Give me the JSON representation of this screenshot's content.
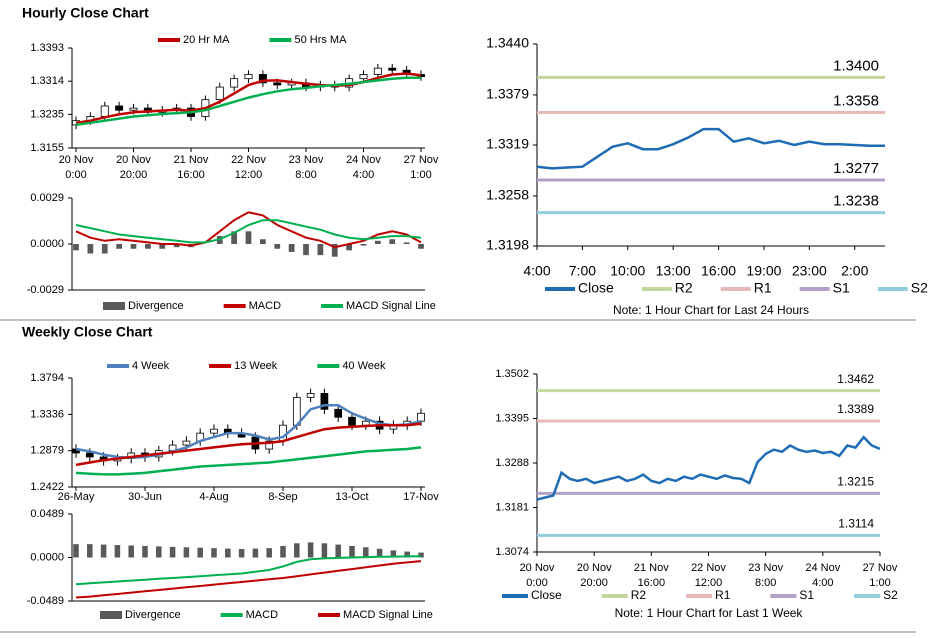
{
  "sections": [
    "Hourly Close Chart",
    "Weekly Close Chart"
  ],
  "chart_data": [
    {
      "type": "candlestick",
      "legend": "top",
      "categories": [
        "20 Nov\n0:00",
        null,
        null,
        null,
        "20 Nov\n20:00",
        null,
        null,
        null,
        "21 Nov\n16:00",
        null,
        null,
        null,
        "22 Nov\n12:00",
        null,
        null,
        null,
        "23 Nov\n8:00",
        null,
        null,
        null,
        "24 Nov\n4:00",
        null,
        null,
        null,
        "27 Nov\n1:00"
      ],
      "candles": {
        "color": "#000000",
        "open": [
          1.321,
          1.322,
          1.323,
          1.3255,
          1.3245,
          1.325,
          1.324,
          1.3245,
          1.325,
          1.323,
          1.327,
          1.33,
          1.332,
          1.333,
          1.331,
          1.3305,
          1.331,
          1.33,
          1.3305,
          1.33,
          1.332,
          1.333,
          1.3345,
          1.334,
          1.333
        ],
        "high": [
          1.323,
          1.324,
          1.3265,
          1.3265,
          1.326,
          1.326,
          1.3255,
          1.326,
          1.326,
          1.328,
          1.331,
          1.333,
          1.334,
          1.334,
          1.332,
          1.332,
          1.332,
          1.3315,
          1.3315,
          1.333,
          1.334,
          1.3355,
          1.3355,
          1.335,
          1.334
        ],
        "low": [
          1.32,
          1.321,
          1.322,
          1.3235,
          1.3235,
          1.323,
          1.323,
          1.3235,
          1.322,
          1.322,
          1.326,
          1.329,
          1.331,
          1.33,
          1.3295,
          1.3295,
          1.329,
          1.329,
          1.329,
          1.329,
          1.331,
          1.332,
          1.333,
          1.332,
          1.3315
        ],
        "close": [
          1.322,
          1.323,
          1.3255,
          1.3245,
          1.325,
          1.324,
          1.3245,
          1.325,
          1.323,
          1.327,
          1.33,
          1.332,
          1.333,
          1.331,
          1.3305,
          1.331,
          1.33,
          1.3305,
          1.33,
          1.332,
          1.333,
          1.3345,
          1.334,
          1.333,
          1.3325
        ]
      },
      "series": [
        {
          "name": "20 Hr MA",
          "color": "#c00000",
          "values": [
            1.3215,
            1.322,
            1.3228,
            1.3235,
            1.324,
            1.3242,
            1.3244,
            1.3246,
            1.3244,
            1.325,
            1.3265,
            1.3285,
            1.3305,
            1.3315,
            1.3316,
            1.3312,
            1.3308,
            1.3305,
            1.3303,
            1.3305,
            1.3312,
            1.3322,
            1.333,
            1.3332,
            1.3328
          ]
        },
        {
          "name": "50 Hrs MA",
          "color": "#00b050",
          "values": [
            1.321,
            1.3215,
            1.322,
            1.3225,
            1.323,
            1.3233,
            1.3236,
            1.3238,
            1.324,
            1.3245,
            1.3255,
            1.3265,
            1.3275,
            1.3283,
            1.329,
            1.3295,
            1.3298,
            1.3302,
            1.3305,
            1.3308,
            1.3312,
            1.3316,
            1.332,
            1.3322,
            1.3322
          ]
        }
      ],
      "ylim": [
        1.3155,
        1.3393
      ],
      "yticks": [
        1.3393,
        1.3314,
        1.3235,
        1.3155
      ]
    },
    {
      "type": "macd",
      "legend": "bottom",
      "series": [
        {
          "name": "Divergence",
          "color": "#595959",
          "style": "bar",
          "values": [
            -0.0004,
            -0.0006,
            -0.0006,
            -0.0003,
            -0.0003,
            -0.0003,
            -0.0003,
            -0.0002,
            -0.0002,
            0.0,
            0.0005,
            0.0008,
            0.0008,
            0.0003,
            -0.0003,
            -0.0005,
            -0.0007,
            -0.0007,
            -0.0008,
            -0.0004,
            -0.0001,
            0.0002,
            0.0003,
            0.0001,
            -0.0003
          ]
        },
        {
          "name": "MACD",
          "color": "#c00000",
          "style": "line",
          "values": [
            0.0008,
            0.0004,
            0.0002,
            0.0003,
            0.0002,
            0.0001,
            0.0,
            0.0,
            -0.0001,
            0.0001,
            0.0008,
            0.0015,
            0.002,
            0.0018,
            0.0012,
            0.0008,
            0.0004,
            0.0002,
            -0.0002,
            0.0,
            0.0002,
            0.0006,
            0.0008,
            0.0006,
            0.0001
          ]
        },
        {
          "name": "MACD Signal Line",
          "color": "#00b050",
          "style": "line",
          "values": [
            0.0012,
            0.001,
            0.0008,
            0.0006,
            0.0005,
            0.0004,
            0.0003,
            0.0002,
            0.0001,
            0.0001,
            0.0003,
            0.0007,
            0.0012,
            0.0015,
            0.0015,
            0.0013,
            0.0011,
            0.0009,
            0.0006,
            0.0004,
            0.0003,
            0.0004,
            0.0005,
            0.0005,
            0.0004
          ]
        }
      ],
      "ylim": [
        -0.0029,
        0.0029
      ],
      "yticks": [
        0.0029,
        {
          "value": 0,
          "label": "0.0000"
        },
        -0.0029
      ]
    },
    {
      "type": "line",
      "legend": "bottom",
      "note": "Note: 1 Hour Chart for Last 24 Hours",
      "categories": [
        "4:00",
        null,
        null,
        "7:00",
        null,
        null,
        "10:00",
        null,
        null,
        "13:00",
        null,
        null,
        "16:00",
        null,
        null,
        "19:00",
        null,
        null,
        "23:00",
        null,
        null,
        "2:00",
        null,
        null
      ],
      "series": [
        {
          "name": "Close",
          "color": "#1f6cb4",
          "values": [
            1.3293,
            1.3291,
            1.3292,
            1.3293,
            1.3305,
            1.3317,
            1.3321,
            1.3314,
            1.3314,
            1.332,
            1.3328,
            1.3338,
            1.3338,
            1.3323,
            1.3327,
            1.3321,
            1.3324,
            1.3319,
            1.3323,
            1.332,
            1.332,
            1.3319,
            1.3318,
            1.3318
          ]
        }
      ],
      "levels": {
        "names": [
          "R2",
          "R1",
          "S1",
          "S2"
        ],
        "colors": [
          "#c3d69b",
          "#e6b9b8",
          "#b3a2c7",
          "#92cddc"
        ],
        "values": [
          1.34,
          1.3358,
          1.3277,
          1.3238
        ],
        "value_labels": [
          "1.3400",
          "1.3358",
          "1.3277",
          "1.3238"
        ]
      },
      "ylim": [
        1.3198,
        1.344
      ],
      "yticks": [
        {
          "value": 1.344,
          "label": "1.3440"
        },
        1.3379,
        1.3319,
        1.3258,
        1.3198
      ]
    },
    {
      "type": "candlestick",
      "legend": "top",
      "categories": [
        "26-May",
        null,
        null,
        null,
        null,
        "30-Jun",
        null,
        null,
        null,
        null,
        "4-Aug",
        null,
        null,
        null,
        null,
        "8-Sep",
        null,
        null,
        null,
        null,
        "13-Oct",
        null,
        null,
        null,
        null,
        "17-Nov"
      ],
      "candles": {
        "color": "#000000",
        "open": [
          1.29,
          1.285,
          1.28,
          1.275,
          1.278,
          1.285,
          1.28,
          1.288,
          1.295,
          1.3,
          1.31,
          1.315,
          1.31,
          1.305,
          1.29,
          1.3,
          1.32,
          1.355,
          1.36,
          1.34,
          1.33,
          1.32,
          1.325,
          1.315,
          1.32,
          1.325
        ],
        "high": [
          1.296,
          1.291,
          1.286,
          1.284,
          1.291,
          1.291,
          1.294,
          1.301,
          1.306,
          1.316,
          1.321,
          1.321,
          1.316,
          1.311,
          1.306,
          1.326,
          1.361,
          1.366,
          1.366,
          1.346,
          1.336,
          1.331,
          1.331,
          1.326,
          1.331,
          1.341
        ],
        "low": [
          1.279,
          1.274,
          1.269,
          1.269,
          1.272,
          1.274,
          1.274,
          1.282,
          1.289,
          1.294,
          1.304,
          1.304,
          1.304,
          1.284,
          1.284,
          1.294,
          1.314,
          1.349,
          1.334,
          1.324,
          1.314,
          1.314,
          1.309,
          1.309,
          1.314,
          1.319
        ],
        "close": [
          1.285,
          1.28,
          1.275,
          1.278,
          1.285,
          1.28,
          1.288,
          1.295,
          1.3,
          1.31,
          1.315,
          1.31,
          1.305,
          1.29,
          1.3,
          1.32,
          1.355,
          1.36,
          1.34,
          1.33,
          1.32,
          1.325,
          1.315,
          1.32,
          1.325,
          1.335
        ]
      },
      "series": [
        {
          "name": "4 Week",
          "color": "#4f81bd",
          "values": [
            1.29,
            1.287,
            1.283,
            1.28,
            1.279,
            1.28,
            1.283,
            1.287,
            1.292,
            1.3,
            1.305,
            1.31,
            1.31,
            1.307,
            1.302,
            1.305,
            1.32,
            1.34,
            1.345,
            1.345,
            1.335,
            1.328,
            1.322,
            1.32,
            1.321,
            1.325
          ]
        },
        {
          "name": "13 Week",
          "color": "#c00000",
          "values": [
            1.27,
            1.273,
            1.276,
            1.278,
            1.28,
            1.282,
            1.284,
            1.286,
            1.288,
            1.29,
            1.292,
            1.294,
            1.296,
            1.297,
            1.298,
            1.3,
            1.305,
            1.31,
            1.315,
            1.317,
            1.318,
            1.319,
            1.32,
            1.32,
            1.32,
            1.322
          ]
        },
        {
          "name": "40 Week",
          "color": "#00b050",
          "values": [
            1.26,
            1.259,
            1.258,
            1.258,
            1.259,
            1.26,
            1.262,
            1.264,
            1.266,
            1.268,
            1.269,
            1.27,
            1.271,
            1.272,
            1.273,
            1.275,
            1.277,
            1.279,
            1.281,
            1.283,
            1.285,
            1.287,
            1.288,
            1.289,
            1.29,
            1.292
          ]
        }
      ],
      "ylim": [
        1.2422,
        1.3794
      ],
      "yticks": [
        1.3794,
        1.3336,
        1.2879,
        1.2422
      ]
    },
    {
      "type": "macd",
      "legend": "bottom",
      "series": [
        {
          "name": "Divergence",
          "color": "#595959",
          "style": "bar",
          "values": [
            0.015,
            0.015,
            0.0145,
            0.014,
            0.0135,
            0.013,
            0.0125,
            0.012,
            0.0115,
            0.011,
            0.0105,
            0.01,
            0.0095,
            0.01,
            0.0105,
            0.013,
            0.016,
            0.017,
            0.016,
            0.0145,
            0.013,
            0.0115,
            0.0098,
            0.008,
            0.0067,
            0.0055
          ]
        },
        {
          "name": "MACD",
          "color": "#00b050",
          "style": "line",
          "values": [
            -0.03,
            -0.029,
            -0.028,
            -0.027,
            -0.026,
            -0.025,
            -0.024,
            -0.023,
            -0.022,
            -0.021,
            -0.02,
            -0.019,
            -0.018,
            -0.016,
            -0.014,
            -0.01,
            -0.005,
            -0.002,
            -0.001,
            -0.0005,
            0.0,
            0.0005,
            0.0008,
            0.001,
            0.0012,
            0.0015
          ]
        },
        {
          "name": "MACD Signal Line",
          "color": "#c00000",
          "style": "line",
          "values": [
            -0.045,
            -0.044,
            -0.0425,
            -0.041,
            -0.0395,
            -0.038,
            -0.0365,
            -0.035,
            -0.0335,
            -0.032,
            -0.0305,
            -0.029,
            -0.0275,
            -0.026,
            -0.0245,
            -0.023,
            -0.021,
            -0.019,
            -0.017,
            -0.015,
            -0.013,
            -0.011,
            -0.009,
            -0.007,
            -0.0055,
            -0.004
          ]
        }
      ],
      "ylim": [
        -0.0489,
        0.0489
      ],
      "yticks": [
        0.0489,
        {
          "value": 0,
          "label": "0.0000"
        },
        -0.0489
      ]
    },
    {
      "type": "line",
      "legend": "bottom",
      "note": "Note: 1 Hour Chart for Last 1 Week",
      "categories": [
        "20 Nov\n0:00",
        null,
        null,
        null,
        null,
        null,
        null,
        "20 Nov\n20:00",
        null,
        null,
        null,
        null,
        null,
        null,
        "21 Nov\n16:00",
        null,
        null,
        null,
        null,
        null,
        null,
        "22 Nov\n12:00",
        null,
        null,
        null,
        null,
        null,
        null,
        "23 Nov\n8:00",
        null,
        null,
        null,
        null,
        null,
        null,
        "24 Nov\n4:00",
        null,
        null,
        null,
        null,
        null,
        null,
        "27 Nov\n1:00"
      ],
      "series": [
        {
          "name": "Close",
          "color": "#1f6cb4",
          "values": [
            1.32,
            1.3205,
            1.321,
            1.3265,
            1.325,
            1.3245,
            1.325,
            1.324,
            1.3245,
            1.325,
            1.3255,
            1.3245,
            1.325,
            1.326,
            1.3245,
            1.324,
            1.325,
            1.3245,
            1.3255,
            1.325,
            1.326,
            1.3255,
            1.325,
            1.3258,
            1.3252,
            1.325,
            1.324,
            1.329,
            1.331,
            1.332,
            1.3315,
            1.333,
            1.332,
            1.3315,
            1.3318,
            1.3312,
            1.3315,
            1.3305,
            1.333,
            1.3325,
            1.335,
            1.333,
            1.3322
          ]
        }
      ],
      "levels": {
        "names": [
          "R2",
          "R1",
          "S1",
          "S2"
        ],
        "colors": [
          "#c3d69b",
          "#e6b9b8",
          "#b3a2c7",
          "#92cddc"
        ],
        "values": [
          1.3462,
          1.3389,
          1.3215,
          1.3114
        ],
        "value_labels": [
          "1.3462",
          "1.3389",
          "1.3215",
          "1.3114"
        ]
      },
      "ylim": [
        1.3074,
        1.3502
      ],
      "yticks": [
        1.3502,
        1.3395,
        1.3288,
        1.3181,
        1.3074
      ]
    }
  ]
}
